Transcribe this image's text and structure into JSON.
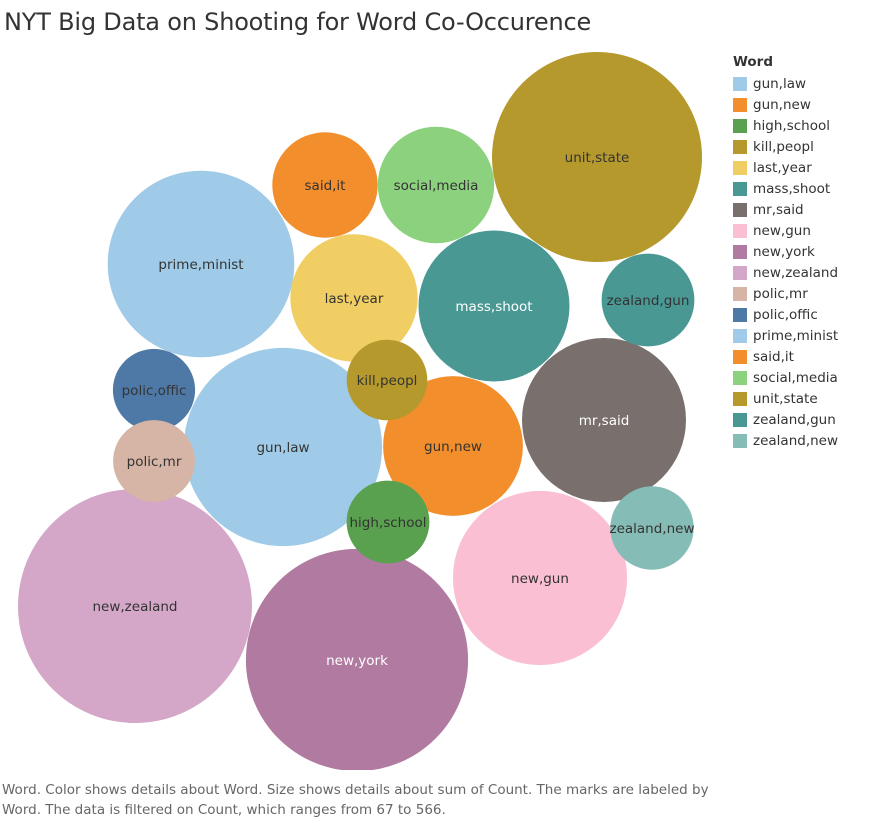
{
  "title": "NYT Big Data on Shooting for Word Co-Occurence",
  "caption": "Word.  Color shows details about Word.  Size shows details about sum of Count.  The marks are labeled by Word. The data is filtered on Count, which ranges from 67 to 566.",
  "legend": {
    "title": "Word",
    "items": [
      {
        "label": "gun,law",
        "color": "#a0cbe8"
      },
      {
        "label": "gun,new",
        "color": "#f28e2b"
      },
      {
        "label": "high,school",
        "color": "#59a14f"
      },
      {
        "label": "kill,peopl",
        "color": "#b6992d"
      },
      {
        "label": "last,year",
        "color": "#f1ce63"
      },
      {
        "label": "mass,shoot",
        "color": "#499894"
      },
      {
        "label": "mr,said",
        "color": "#79706e"
      },
      {
        "label": "new,gun",
        "color": "#fabfd2"
      },
      {
        "label": "new,york",
        "color": "#b07aa1"
      },
      {
        "label": "new,zealand",
        "color": "#d4a6c8"
      },
      {
        "label": "polic,mr",
        "color": "#d7b5a6"
      },
      {
        "label": "polic,offic",
        "color": "#4e79a7"
      },
      {
        "label": "prime,minist",
        "color": "#a0cbe8"
      },
      {
        "label": "said,it",
        "color": "#f28e2b"
      },
      {
        "label": "social,media",
        "color": "#8cd17d"
      },
      {
        "label": "unit,state",
        "color": "#b6992d"
      },
      {
        "label": "zealand,gun",
        "color": "#499894"
      },
      {
        "label": "zealand,new",
        "color": "#86bcb6"
      }
    ]
  },
  "chart_data": {
    "type": "bubble",
    "measure": "sum of Count",
    "count_range": [
      67,
      566
    ],
    "series": [
      {
        "name": "new,zealand",
        "value": 566,
        "color": "#d4a6c8",
        "label_color": "#333333"
      },
      {
        "name": "new,york",
        "value": 510,
        "color": "#b07aa1",
        "label_color": "#ffffff"
      },
      {
        "name": "unit,state",
        "value": 456,
        "color": "#b6992d",
        "label_color": "#333333"
      },
      {
        "name": "gun,law",
        "value": 406,
        "color": "#a0cbe8",
        "label_color": "#333333"
      },
      {
        "name": "prime,minist",
        "value": 360,
        "color": "#a0cbe8",
        "label_color": "#333333"
      },
      {
        "name": "new,gun",
        "value": 314,
        "color": "#fabfd2",
        "label_color": "#333333"
      },
      {
        "name": "mr,said",
        "value": 278,
        "color": "#79706e",
        "label_color": "#ffffff"
      },
      {
        "name": "mass,shoot",
        "value": 236,
        "color": "#499894",
        "label_color": "#ffffff"
      },
      {
        "name": "last,year",
        "value": 168,
        "color": "#f1ce63",
        "label_color": "#333333"
      },
      {
        "name": "gun,new",
        "value": 202,
        "color": "#f28e2b",
        "label_color": "#333333"
      },
      {
        "name": "social,media",
        "value": 140,
        "color": "#8cd17d",
        "label_color": "#333333"
      },
      {
        "name": "said,it",
        "value": 115,
        "color": "#f28e2b",
        "label_color": "#333333"
      },
      {
        "name": "zealand,gun",
        "value": 89,
        "color": "#499894",
        "label_color": "#333333"
      },
      {
        "name": "polic,offic",
        "value": 70,
        "color": "#4e79a7",
        "label_color": "#333333"
      },
      {
        "name": "zealand,new",
        "value": 72,
        "color": "#86bcb6",
        "label_color": "#333333"
      },
      {
        "name": "high,school",
        "value": 71,
        "color": "#59a14f",
        "label_color": "#333333"
      },
      {
        "name": "polic,mr",
        "value": 69,
        "color": "#d7b5a6",
        "label_color": "#333333"
      },
      {
        "name": "kill,peopl",
        "value": 67,
        "color": "#b6992d",
        "label_color": "#333333"
      }
    ]
  }
}
